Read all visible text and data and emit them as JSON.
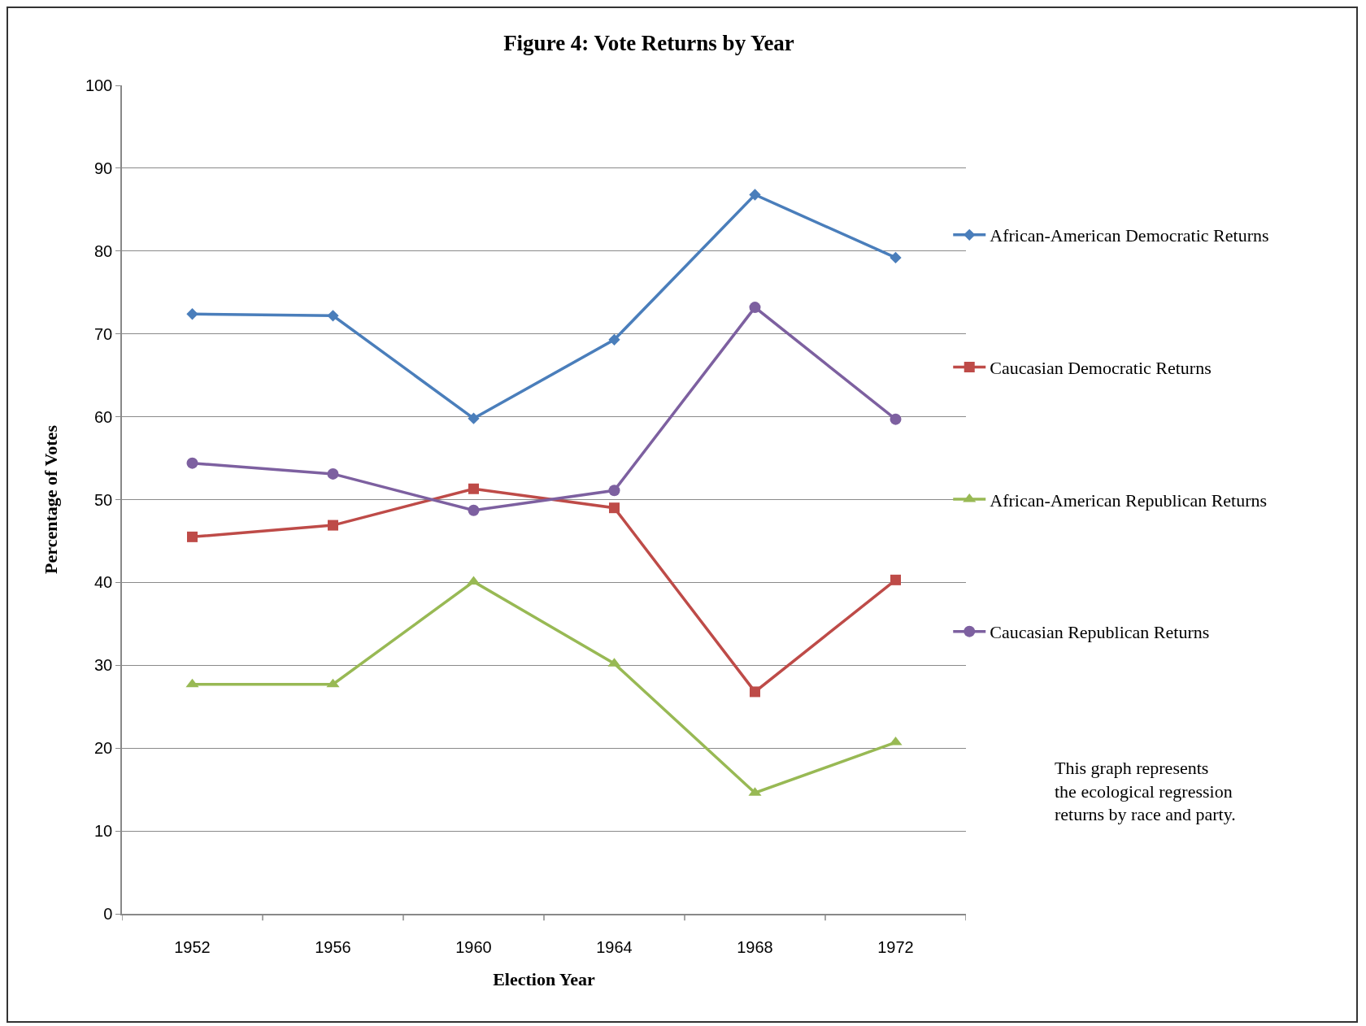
{
  "chart_data": {
    "type": "line",
    "title": "Figure 4: Vote Returns by Year",
    "xlabel": "Election Year",
    "ylabel": "Percentage of Votes",
    "categories": [
      "1952",
      "1956",
      "1960",
      "1964",
      "1968",
      "1972"
    ],
    "series": [
      {
        "name": "African-American Democratic Returns",
        "color": "#4a7ebb",
        "marker": "diamond",
        "values": [
          72.4,
          72.2,
          59.8,
          69.3,
          86.8,
          79.2
        ]
      },
      {
        "name": "Caucasian Democratic Returns",
        "color": "#be4b48",
        "marker": "square",
        "values": [
          45.5,
          46.9,
          51.3,
          49.0,
          26.8,
          40.3
        ]
      },
      {
        "name": "African-American Republican Returns",
        "color": "#98b954",
        "marker": "triangle",
        "values": [
          27.7,
          27.7,
          40.1,
          30.2,
          14.6,
          20.7
        ]
      },
      {
        "name": "Caucasian Republican Returns",
        "color": "#7d60a0",
        "marker": "circle",
        "values": [
          54.4,
          53.1,
          48.7,
          51.1,
          73.2,
          59.7
        ]
      }
    ],
    "ylim": [
      0,
      100
    ],
    "yticks": [
      0,
      10,
      20,
      30,
      40,
      50,
      60,
      70,
      80,
      90,
      100
    ],
    "grid": "y",
    "legend": "right",
    "annotations": [
      "This graph represents\nthe ecological regression\nreturns by race and party."
    ]
  }
}
